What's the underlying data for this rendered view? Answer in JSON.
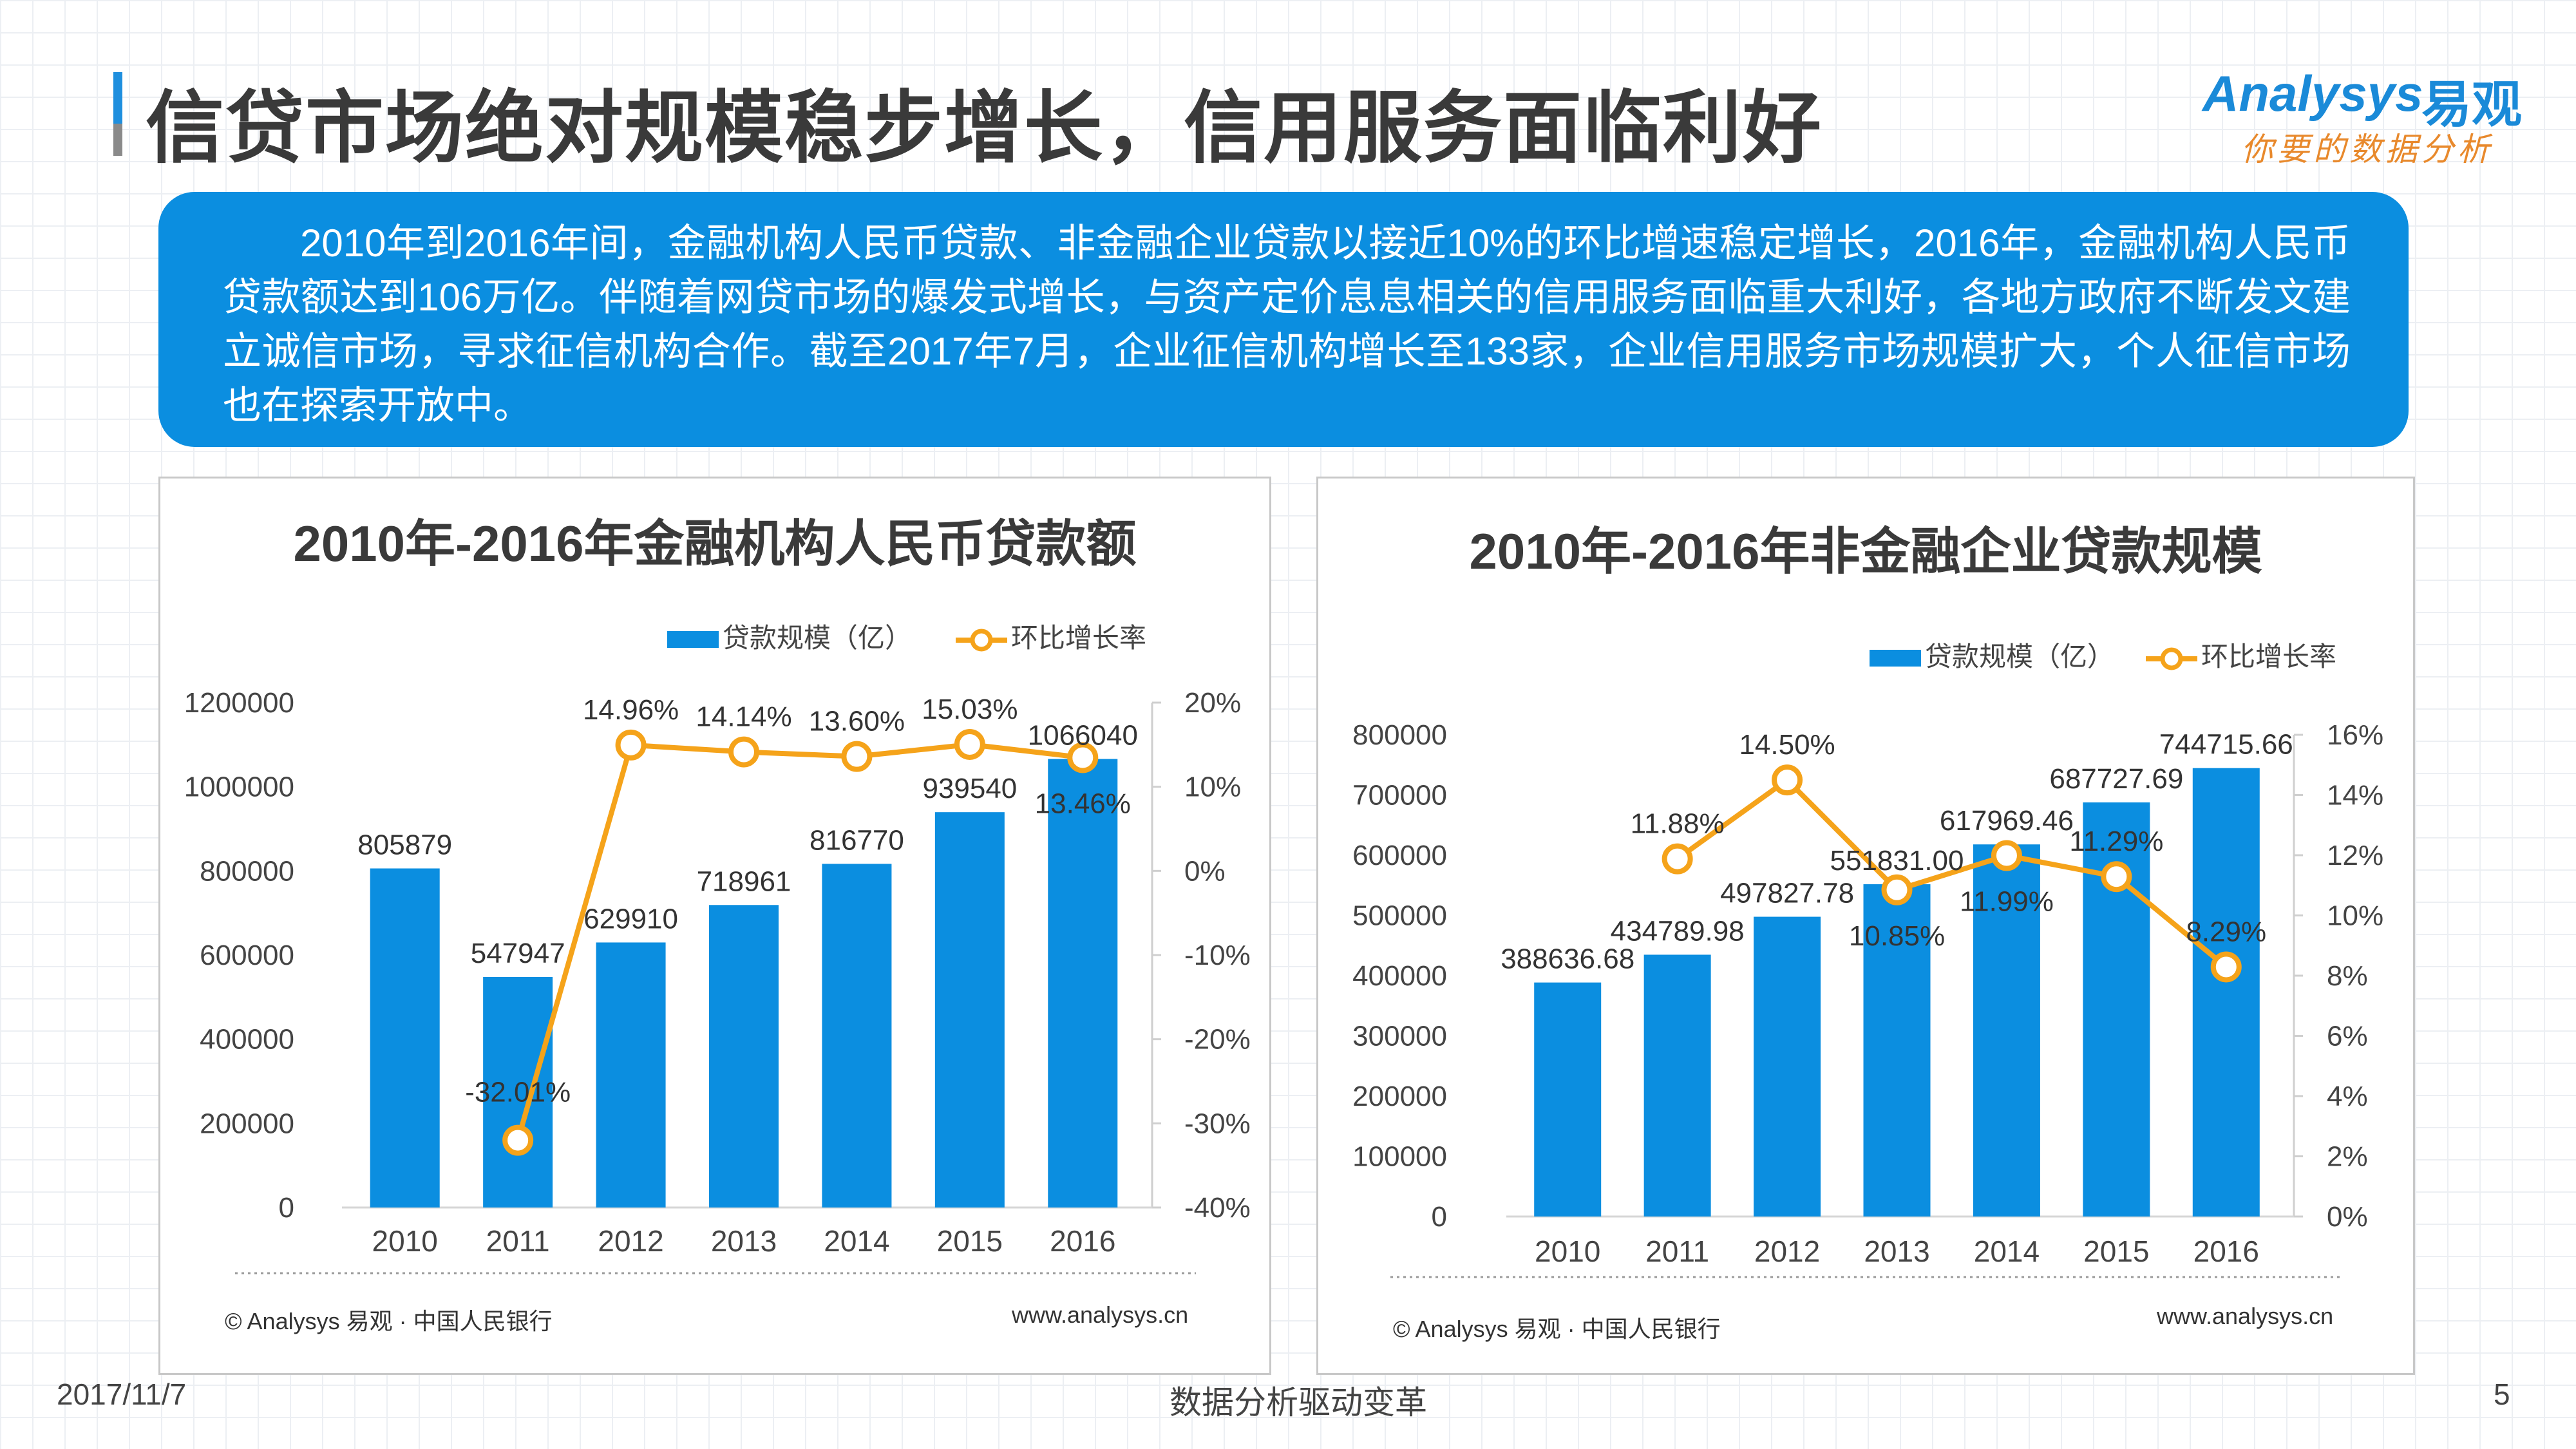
{
  "page": {
    "title": "信贷市场绝对规模稳步增长，信用服务面临利好",
    "summary": "2010年到2016年间，金融机构人民币贷款、非金融企业贷款以接近10%的环比增速稳定增长，2016年，金融机构人民币贷款额达到106万亿。伴随着网贷市场的爆发式增长，与资产定价息息相关的信用服务面临重大利好，各地方政府不断发文建立诚信市场，寻求征信机构合作。截至2017年7月，企业征信机构增长至133家，企业信用服务市场规模扩大，个人征信市场也在探索开放中。",
    "date": "2017/11/7",
    "footer_center": "数据分析驱动变革",
    "page_number": "5"
  },
  "logo": {
    "brand_en": "Analysys",
    "brand_cn": "易观",
    "slogan": "你要的数据分析"
  },
  "colors": {
    "bar": "#0b8ee0",
    "line": "#f5a31a",
    "summary_bg": "#0b8ee0",
    "title_accent": "#1f8fde"
  },
  "chart_data": [
    {
      "type": "bar",
      "title": "2010年-2016年金融机构人民币贷款额",
      "categories": [
        "2010",
        "2011",
        "2012",
        "2013",
        "2014",
        "2015",
        "2016"
      ],
      "series": [
        {
          "name": "贷款规模（亿）",
          "kind": "bar",
          "axis": "left",
          "values": [
            805879,
            547947,
            629910,
            718961,
            816770,
            939540,
            1066040
          ],
          "labels": [
            "805879",
            "547947",
            "629910",
            "718961",
            "816770",
            "939540",
            "1066040"
          ]
        },
        {
          "name": "环比增长率",
          "kind": "line",
          "axis": "right",
          "values": [
            null,
            -32.01,
            14.96,
            14.14,
            13.6,
            15.03,
            13.46
          ],
          "labels": [
            "",
            "-32.01%",
            "14.96%",
            "14.14%",
            "13.60%",
            "15.03%",
            "13.46%"
          ]
        }
      ],
      "left_axis": {
        "min": 0,
        "max": 1200000,
        "ticks": [
          "0",
          "200000",
          "400000",
          "600000",
          "800000",
          "1000000",
          "1200000"
        ]
      },
      "right_axis": {
        "min": -40,
        "max": 20,
        "ticks": [
          "-40%",
          "-30%",
          "-20%",
          "-10%",
          "0%",
          "10%",
          "20%"
        ]
      },
      "legend": {
        "position": "top-right",
        "bar_label": "贷款规模（亿）",
        "line_label": "环比增长率"
      },
      "source": "© Analysys 易观 · 中国人民银行",
      "website": "www.analysys.cn"
    },
    {
      "type": "bar",
      "title": "2010年-2016年非金融企业贷款规模",
      "categories": [
        "2010",
        "2011",
        "2012",
        "2013",
        "2014",
        "2015",
        "2016"
      ],
      "series": [
        {
          "name": "贷款规模（亿）",
          "kind": "bar",
          "axis": "left",
          "values": [
            388636.68,
            434789.98,
            497827.78,
            551831.0,
            617969.46,
            687727.69,
            744715.66
          ],
          "labels": [
            "388636.68",
            "434789.98",
            "497827.78",
            "551831.00",
            "617969.46",
            "687727.69",
            "744715.66"
          ]
        },
        {
          "name": "环比增长率",
          "kind": "line",
          "axis": "right",
          "values": [
            null,
            11.88,
            14.5,
            10.85,
            11.99,
            11.29,
            8.29
          ],
          "labels": [
            "",
            "11.88%",
            "14.50%",
            "10.85%",
            "11.99%",
            "11.29%",
            "8.29%"
          ]
        }
      ],
      "left_axis": {
        "min": 0,
        "max": 800000,
        "ticks": [
          "0",
          "100000",
          "200000",
          "300000",
          "400000",
          "500000",
          "600000",
          "700000",
          "800000"
        ]
      },
      "right_axis": {
        "min": 0,
        "max": 16,
        "ticks": [
          "0%",
          "2%",
          "4%",
          "6%",
          "8%",
          "10%",
          "12%",
          "14%",
          "16%"
        ]
      },
      "legend": {
        "position": "top-right",
        "bar_label": "贷款规模（亿）",
        "line_label": "环比增长率"
      },
      "source": "© Analysys 易观 · 中国人民银行",
      "website": "www.analysys.cn"
    }
  ]
}
